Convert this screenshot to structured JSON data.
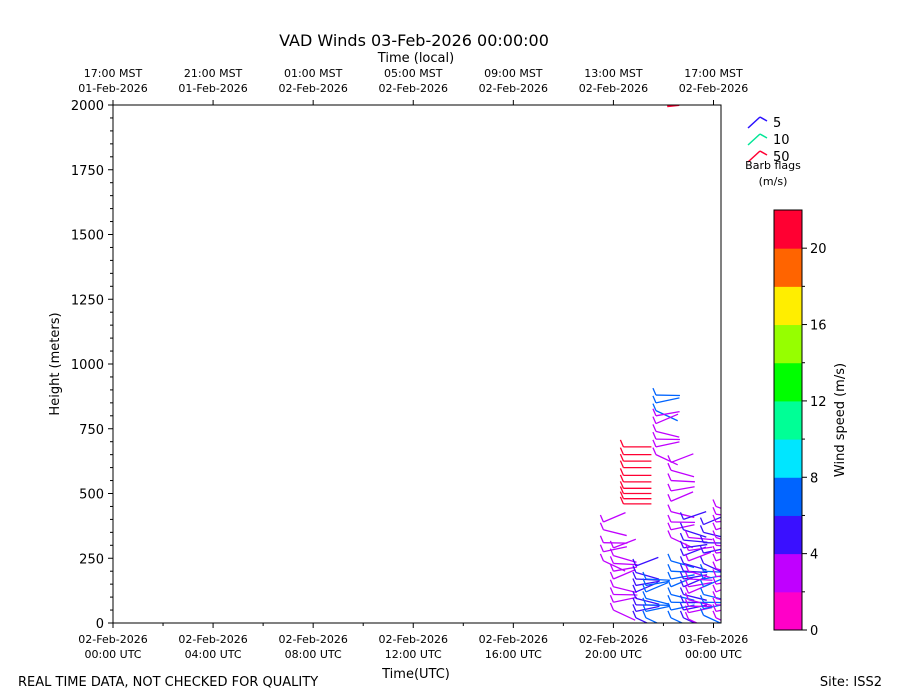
{
  "title": "VAD Winds 03-Feb-2026 00:00:00",
  "footer_left": "REAL TIME DATA, NOT CHECKED FOR QUALITY",
  "footer_right": "Site: ISS2",
  "chart_data": {
    "type": "barb",
    "top_axis_label": "Time (local)",
    "xlabel": "Time(UTC)",
    "ylabel": "Height (meters)",
    "xlim_hours": [
      0,
      24.3
    ],
    "ylim": [
      0,
      2000
    ],
    "y_ticks": [
      0,
      250,
      500,
      750,
      1000,
      1250,
      1500,
      1750,
      2000
    ],
    "x_ticks": [
      {
        "h": 0,
        "line1": "02-Feb-2026",
        "line2": "00:00 UTC"
      },
      {
        "h": 4,
        "line1": "02-Feb-2026",
        "line2": "04:00 UTC"
      },
      {
        "h": 8,
        "line1": "02-Feb-2026",
        "line2": "08:00 UTC"
      },
      {
        "h": 12,
        "line1": "02-Feb-2026",
        "line2": "12:00 UTC"
      },
      {
        "h": 16,
        "line1": "02-Feb-2026",
        "line2": "16:00 UTC"
      },
      {
        "h": 20,
        "line1": "02-Feb-2026",
        "line2": "20:00 UTC"
      },
      {
        "h": 24,
        "line1": "03-Feb-2026",
        "line2": "00:00 UTC"
      }
    ],
    "top_ticks": [
      {
        "h": 0,
        "line1": "17:00 MST",
        "line2": "01-Feb-2026"
      },
      {
        "h": 4,
        "line1": "21:00 MST",
        "line2": "01-Feb-2026"
      },
      {
        "h": 8,
        "line1": "01:00 MST",
        "line2": "02-Feb-2026"
      },
      {
        "h": 12,
        "line1": "05:00 MST",
        "line2": "02-Feb-2026"
      },
      {
        "h": 16,
        "line1": "09:00 MST",
        "line2": "02-Feb-2026"
      },
      {
        "h": 20,
        "line1": "13:00 MST",
        "line2": "02-Feb-2026"
      },
      {
        "h": 24,
        "line1": "17:00 MST",
        "line2": "02-Feb-2026"
      }
    ],
    "legend": {
      "entries": [
        {
          "label": "5",
          "color": "#2a10ff"
        },
        {
          "label": "10",
          "color": "#00e696"
        },
        {
          "label": "50",
          "color": "#ff0033"
        }
      ],
      "caption_line1": "Barb flags",
      "caption_line2": "(m/s)"
    },
    "colorbar": {
      "label": "Wind speed (m/s)",
      "min": 0,
      "max": 22,
      "ticks": [
        0,
        4,
        8,
        12,
        16,
        20
      ],
      "colors": [
        "#ff00c8",
        "#c000ff",
        "#3a10ff",
        "#0064ff",
        "#00e6ff",
        "#00ff96",
        "#00ff00",
        "#96ff00",
        "#ffee00",
        "#ff6400",
        "#ff0032"
      ]
    },
    "profiles": [
      {
        "h": 20.4,
        "speed": 21,
        "heights": [
          460,
          480,
          500,
          520,
          545,
          570,
          600,
          625,
          650,
          680
        ]
      },
      {
        "h": 19.6,
        "speed": 3,
        "heights": [
          240,
          275,
          310,
          360,
          390
        ]
      },
      {
        "h": 20.0,
        "speed": 3,
        "heights": [
          50,
          80,
          110,
          140,
          170,
          200,
          230,
          260,
          290
        ]
      },
      {
        "h": 20.9,
        "speed": 5,
        "heights": [
          20,
          45,
          70,
          95,
          120,
          145,
          170,
          195,
          220
        ]
      },
      {
        "h": 21.3,
        "speed": 6,
        "heights": [
          20,
          45,
          70,
          95,
          120,
          145,
          170
        ]
      },
      {
        "h": 21.7,
        "speed": 7,
        "heights": [
          820,
          850,
          880
        ]
      },
      {
        "h": 21.7,
        "speed": 3,
        "heights": [
          650,
          680,
          710,
          740,
          770,
          800
        ]
      },
      {
        "h": 22.3,
        "speed": 3,
        "heights": [
          330,
          360,
          390,
          430,
          470,
          510,
          550,
          590,
          620
        ]
      },
      {
        "h": 22.3,
        "speed": 6,
        "heights": [
          20,
          50,
          80,
          110,
          140,
          170,
          200,
          240
        ]
      },
      {
        "h": 22.8,
        "speed": 5,
        "heights": [
          20,
          50,
          80,
          110,
          140,
          170,
          200,
          230,
          260,
          290,
          320,
          360,
          400
        ]
      },
      {
        "h": 23.0,
        "speed": 2,
        "heights": [
          15,
          40,
          65,
          90,
          115,
          140,
          170,
          200,
          240,
          280,
          330
        ]
      },
      {
        "h": 23.6,
        "speed": 6,
        "heights": [
          30,
          55,
          80,
          110,
          140,
          170,
          200
        ]
      },
      {
        "h": 23.6,
        "speed": 5,
        "heights": [
          230,
          270,
          310,
          350,
          380
        ]
      },
      {
        "h": 24.1,
        "speed": 3,
        "heights": [
          20,
          45,
          70,
          95,
          120,
          150,
          180,
          210,
          240,
          270,
          300,
          330,
          360,
          390,
          420,
          450
        ]
      }
    ]
  }
}
